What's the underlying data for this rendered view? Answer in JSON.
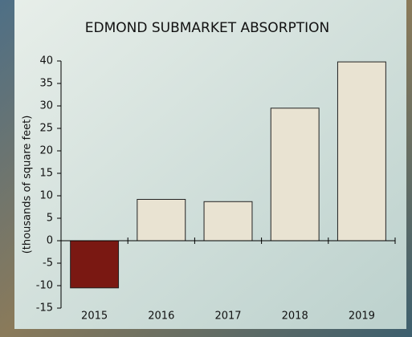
{
  "chart_data": {
    "type": "bar",
    "title": "EDMOND SUBMARKET ABSORPTION",
    "y_label": "(thousands of square feet)",
    "categories": [
      "2015",
      "2016",
      "2017",
      "2018",
      "2019"
    ],
    "values": [
      -10.5,
      9.2,
      8.7,
      29.5,
      39.8
    ],
    "colors": [
      "#7a1812",
      "#e9e3d2",
      "#e9e3d2",
      "#e9e3d2",
      "#e9e3d2"
    ],
    "ylim": [
      -15,
      40
    ],
    "yticks": [
      -15,
      -10,
      -5,
      0,
      5,
      10,
      15,
      20,
      25,
      30,
      35,
      40
    ],
    "grid": false
  }
}
